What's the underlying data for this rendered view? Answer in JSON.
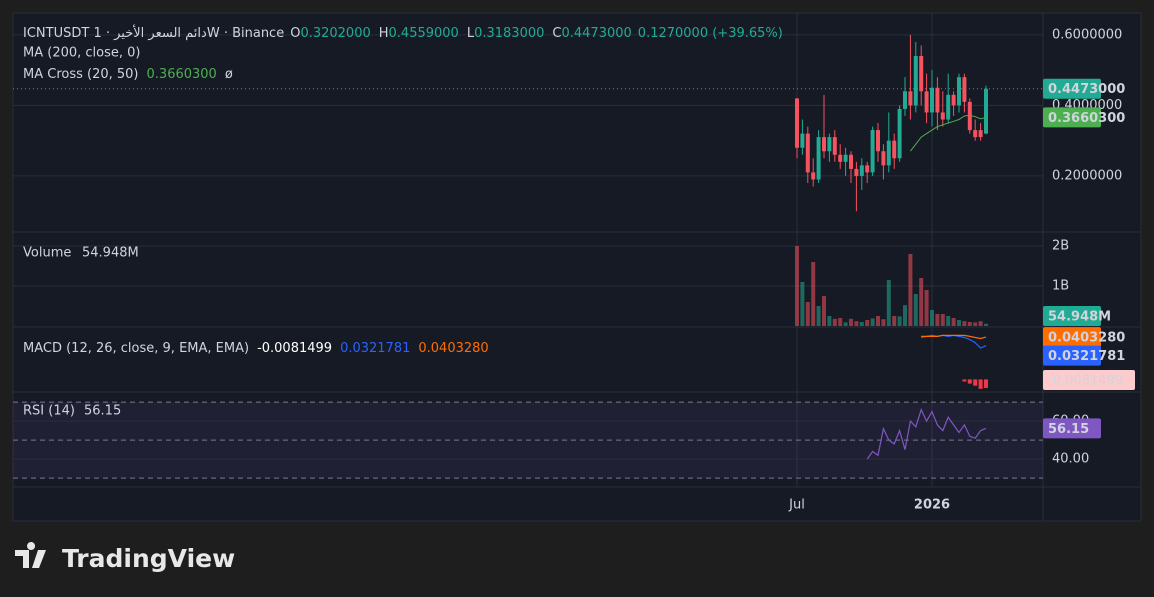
{
  "header": {
    "title": "ICNTUSDT دائم السعر الأخير · 1W · Binance",
    "ohlc": [
      {
        "key": "O",
        "value": "0.3202000"
      },
      {
        "key": "H",
        "value": "0.4559000"
      },
      {
        "key": "L",
        "value": "0.3183000"
      },
      {
        "key": "C",
        "value": "0.4473000"
      }
    ],
    "change": "0.1270000 (+39.65%)",
    "ma200": "MA (200, close, 0)",
    "ma_cross": "MA Cross (20, 50)",
    "ma_cross_value": "0.3660300",
    "ma_cross_extra": "ø"
  },
  "brand": "TradingView",
  "chart_data": [
    {
      "type": "candlestick",
      "categories": [
        "Jul",
        null,
        null,
        null,
        null,
        null,
        null,
        null,
        null,
        null,
        null,
        null,
        null,
        null,
        null,
        null,
        null,
        null,
        null,
        null,
        null,
        null,
        null,
        null,
        null,
        "2026",
        null,
        null,
        null,
        null,
        null,
        null,
        null,
        null,
        null,
        null
      ],
      "open": [
        0.42,
        0.28,
        0.32,
        0.21,
        0.19,
        0.31,
        0.27,
        0.31,
        0.26,
        0.24,
        0.26,
        0.22,
        0.2,
        0.23,
        0.21,
        0.33,
        0.27,
        0.23,
        0.3,
        0.25,
        0.39,
        0.44,
        0.4,
        0.54,
        0.44,
        0.38,
        0.45,
        0.38,
        0.36,
        0.43,
        0.4,
        0.48,
        0.41,
        0.33,
        0.33,
        0.3202
      ],
      "high": [
        0.42,
        0.36,
        0.34,
        0.25,
        0.33,
        0.43,
        0.32,
        0.33,
        0.29,
        0.28,
        0.27,
        0.24,
        0.25,
        0.24,
        0.34,
        0.35,
        0.29,
        0.38,
        0.32,
        0.4,
        0.48,
        0.6,
        0.58,
        0.57,
        0.49,
        0.5,
        0.48,
        0.44,
        0.49,
        0.44,
        0.49,
        0.49,
        0.42,
        0.36,
        0.35,
        0.4559
      ],
      "low": [
        0.25,
        0.26,
        0.18,
        0.17,
        0.18,
        0.25,
        0.24,
        0.24,
        0.22,
        0.2,
        0.18,
        0.1,
        0.16,
        0.18,
        0.2,
        0.24,
        0.19,
        0.21,
        0.22,
        0.24,
        0.37,
        0.36,
        0.38,
        0.4,
        0.35,
        0.34,
        0.33,
        0.34,
        0.35,
        0.37,
        0.38,
        0.38,
        0.32,
        0.3,
        0.3,
        0.3183
      ],
      "close": [
        0.28,
        0.32,
        0.21,
        0.19,
        0.31,
        0.27,
        0.31,
        0.26,
        0.24,
        0.26,
        0.22,
        0.2,
        0.23,
        0.21,
        0.33,
        0.27,
        0.23,
        0.3,
        0.25,
        0.39,
        0.44,
        0.4,
        0.54,
        0.44,
        0.38,
        0.45,
        0.38,
        0.36,
        0.43,
        0.4,
        0.48,
        0.41,
        0.33,
        0.31,
        0.31,
        0.4473
      ],
      "value_labels": {
        "close_last": "0.4473000"
      },
      "up_color": "#22ab94",
      "down_color": "#f7525f",
      "ma_cross": {
        "color": "#4caf50",
        "values": [
          null,
          null,
          null,
          null,
          null,
          null,
          null,
          null,
          null,
          null,
          null,
          null,
          null,
          null,
          null,
          null,
          null,
          null,
          null,
          null,
          null,
          0.27,
          0.29,
          0.31,
          0.32,
          0.33,
          0.34,
          0.345,
          0.35,
          0.355,
          0.36,
          0.37,
          0.372,
          0.368,
          0.362,
          0.36603
        ]
      },
      "ylim": [
        0.041,
        0.662
      ],
      "yticks": [
        {
          "value": 0.2,
          "label": "0.2000000"
        },
        {
          "value": 0.4,
          "label": "0.4000000"
        },
        {
          "value": 0.6,
          "label": "0.6000000"
        }
      ],
      "grid": true
    },
    {
      "type": "bar",
      "label": "Volume",
      "value_label": "54.948M",
      "values": [
        2000000000,
        1100000000,
        600000000,
        1600000000,
        500000000,
        750000000,
        250000000,
        180000000,
        200000000,
        90000000,
        180000000,
        120000000,
        100000000,
        150000000,
        190000000,
        250000000,
        170000000,
        1150000000,
        250000000,
        240000000,
        520000000,
        1800000000,
        800000000,
        1200000000,
        900000000,
        400000000,
        300000000,
        300000000,
        250000000,
        200000000,
        150000000,
        120000000,
        100000000,
        90000000,
        120000000,
        54948000
      ],
      "ylim": [
        0,
        2350000000
      ],
      "yticks": [
        {
          "value": 1000000000,
          "label": "1B"
        },
        {
          "value": 2000000000,
          "label": "2B"
        }
      ]
    },
    {
      "type": "macd",
      "label": "MACD (12, 26, close, 9, EMA, EMA)",
      "histogram": {
        "color": "#f23645",
        "values": [
          null,
          null,
          null,
          null,
          null,
          null,
          null,
          null,
          null,
          null,
          null,
          null,
          null,
          null,
          null,
          null,
          null,
          null,
          null,
          null,
          null,
          null,
          null,
          null,
          null,
          null,
          null,
          null,
          null,
          null,
          null,
          -0.002,
          -0.004,
          -0.006,
          -0.009,
          -0.0081499
        ],
        "value_label": "-0.0081499"
      },
      "macd": {
        "color": "#2962ff",
        "values": [
          null,
          null,
          null,
          null,
          null,
          null,
          null,
          null,
          null,
          null,
          null,
          null,
          null,
          null,
          null,
          null,
          null,
          null,
          null,
          null,
          null,
          null,
          null,
          0.04,
          0.041,
          0.042,
          0.041,
          0.042,
          0.041,
          0.042,
          0.041,
          0.04,
          0.038,
          0.035,
          0.03,
          0.0321781
        ],
        "value_label": "0.0321781"
      },
      "signal": {
        "color": "#ff6d00",
        "values": [
          null,
          null,
          null,
          null,
          null,
          null,
          null,
          null,
          null,
          null,
          null,
          null,
          null,
          null,
          null,
          null,
          null,
          null,
          null,
          null,
          null,
          null,
          null,
          0.041,
          0.041,
          0.041,
          0.041,
          0.042,
          0.042,
          0.042,
          0.042,
          0.042,
          0.041,
          0.04,
          0.039,
          0.040328
        ],
        "value_label": "0.0403280"
      },
      "ylim": [
        -0.012,
        0.05
      ]
    },
    {
      "type": "line",
      "label": "RSI (14)",
      "color": "#7e57c2",
      "value_label": "56.15",
      "values": [
        null,
        null,
        null,
        null,
        null,
        null,
        null,
        null,
        null,
        null,
        null,
        null,
        null,
        40,
        44,
        42,
        56,
        50,
        48,
        55,
        45,
        60,
        57,
        66,
        60,
        65,
        58,
        55,
        62,
        58,
        54,
        58,
        52,
        51,
        55,
        56.15
      ],
      "bands": [
        70,
        50,
        30
      ],
      "ylim": [
        25.3,
        75.3
      ],
      "yticks": [
        {
          "value": 40,
          "label": "40.00"
        },
        {
          "value": 60,
          "label": "60.00"
        }
      ]
    }
  ]
}
